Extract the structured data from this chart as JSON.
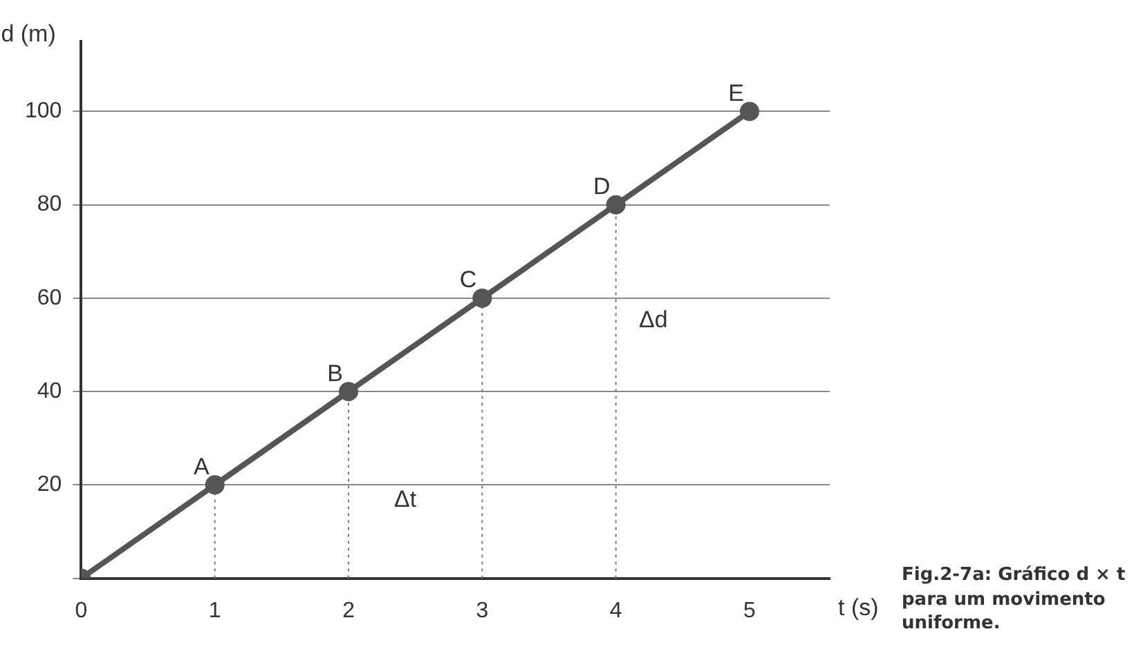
{
  "chart_data": {
    "type": "line",
    "xlabel": "t (s)",
    "ylabel": "d (m)",
    "x": [
      0,
      1,
      2,
      3,
      4,
      5
    ],
    "series": [
      {
        "color": "#555555",
        "values": [
          0,
          20,
          40,
          60,
          80,
          100
        ]
      }
    ],
    "xlim": [
      0,
      5.6
    ],
    "ylim": [
      0,
      115
    ],
    "xticks": [
      0,
      1,
      2,
      3,
      4,
      5
    ],
    "yticks": [
      {
        "value": 0,
        "label": null
      },
      20,
      40,
      60,
      80,
      100
    ],
    "grid": "y",
    "marker": "circle",
    "line_style": "solid",
    "legend": false,
    "annotations": [
      {
        "text": "A",
        "x": 1,
        "y": 20
      },
      {
        "text": "B",
        "x": 2,
        "y": 40
      },
      {
        "text": "C",
        "x": 3,
        "y": 60
      },
      {
        "text": "D",
        "x": 4,
        "y": 80
      },
      {
        "text": "E",
        "x": 5,
        "y": 100
      },
      "Δd",
      "Δt",
      "Fig.2-7a: Gráfico d × t para um movimento uniforme."
    ]
  }
}
